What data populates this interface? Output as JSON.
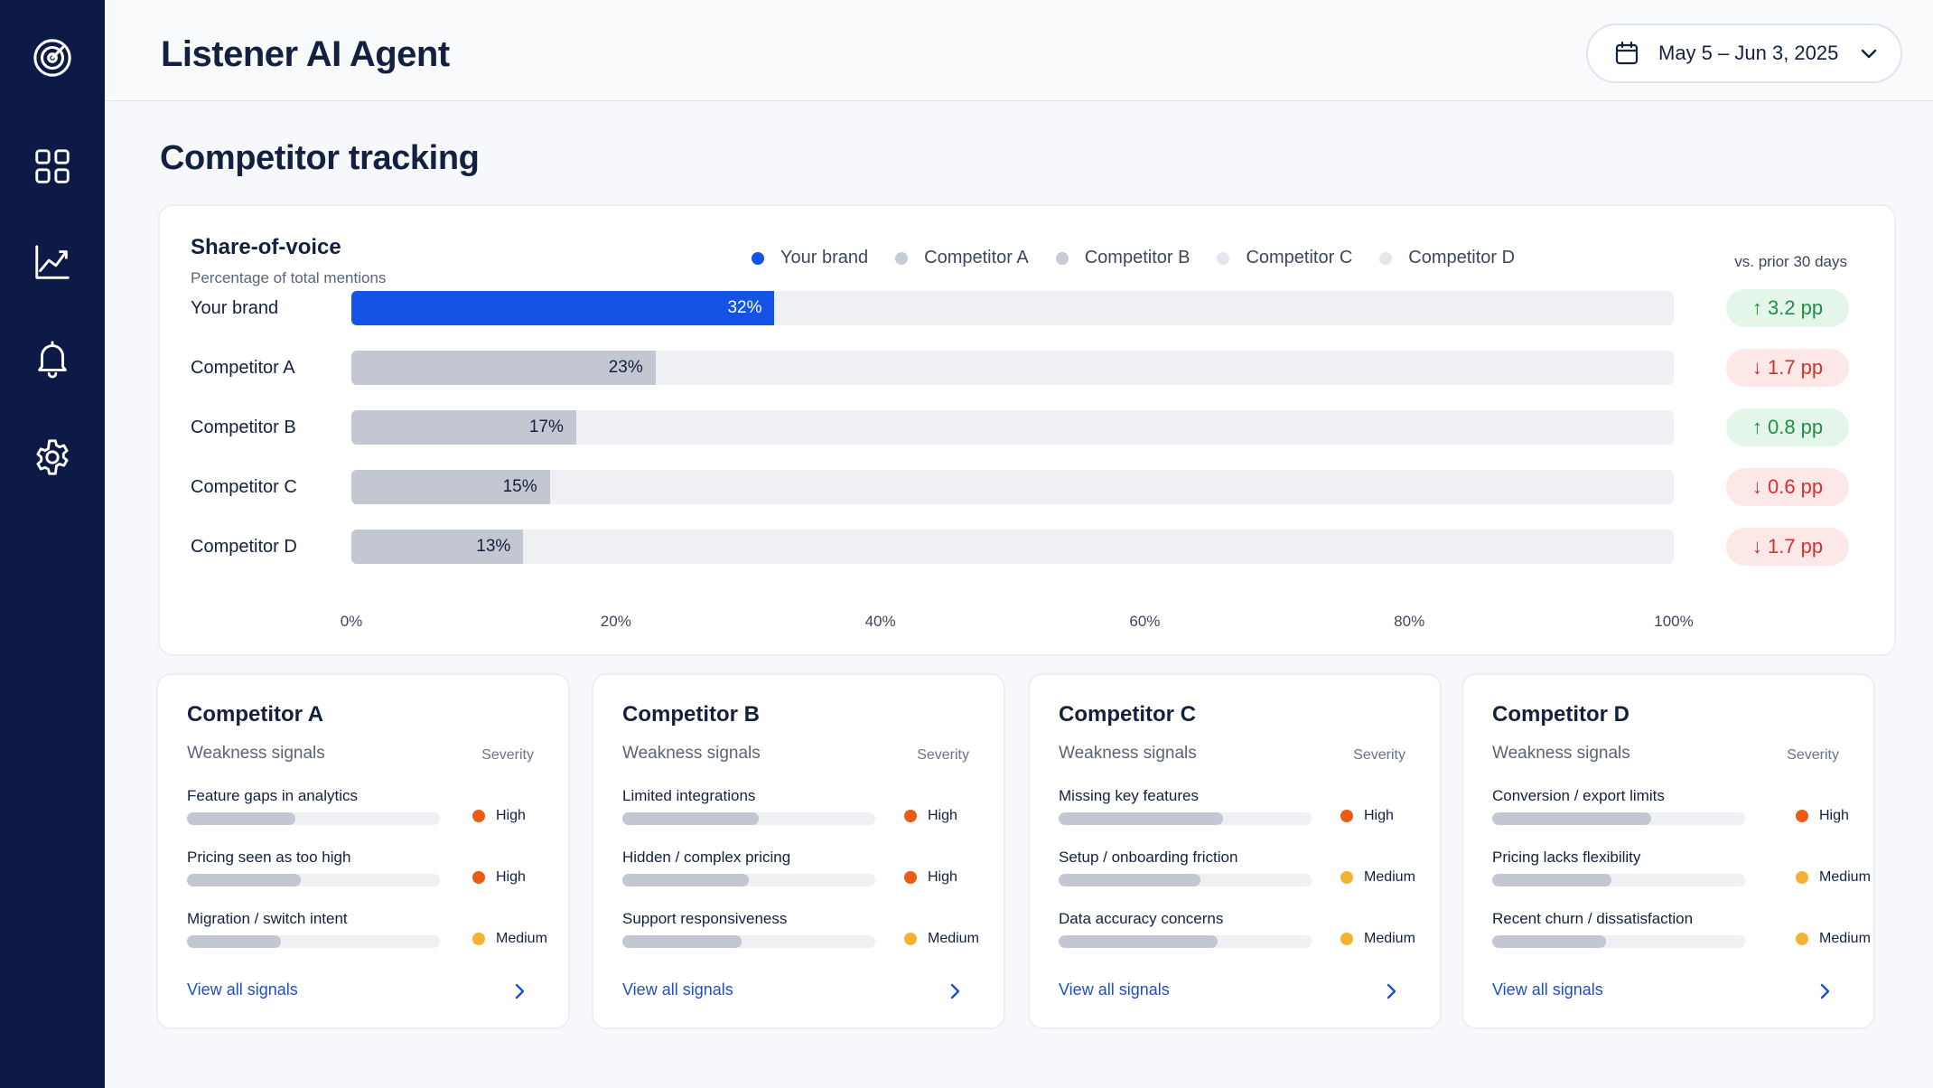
{
  "app": {
    "title": "Listener AI Agent"
  },
  "date_range": {
    "label": "May 5 – Jun 3, 2025"
  },
  "page": {
    "title": "Competitor tracking"
  },
  "sidebar": {
    "icons": [
      "target-icon",
      "grid-icon",
      "chart-icon",
      "bell-icon",
      "gear-icon"
    ]
  },
  "colors": {
    "sidebar_bg": "#0c1a45",
    "brand": "#1553e6",
    "competitor_bar": "#c3c7d1",
    "up_bg": "#e4f6ea",
    "up_text": "#1f8f45",
    "down_bg": "#fde8e8",
    "down_text": "#d62f2f",
    "high": "#ec5b13",
    "medium": "#f5b334",
    "link": "#1f4fd1"
  },
  "share_of_voice": {
    "title": "Share-of-voice",
    "subtitle": "Percentage of total mentions",
    "vs_label": "vs. prior 30 days",
    "legend": [
      {
        "label": "Your brand",
        "color": "#1553e6"
      },
      {
        "label": "Competitor A",
        "color": "#c7cbd4"
      },
      {
        "label": "Competitor B",
        "color": "#c7cbd4"
      },
      {
        "label": "Competitor C",
        "color": "#e3e6ec"
      },
      {
        "label": "Competitor D",
        "color": "#e3e6ec"
      }
    ]
  },
  "chart_data": {
    "type": "bar",
    "orientation": "horizontal",
    "title": "Share-of-voice",
    "subtitle": "Percentage of total mentions",
    "categories": [
      "Your brand",
      "Competitor A",
      "Competitor B",
      "Competitor C",
      "Competitor D"
    ],
    "values": [
      32,
      23,
      17,
      15,
      13
    ],
    "value_labels": [
      "32%",
      "23%",
      "17%",
      "15%",
      "13%"
    ],
    "deltas": [
      {
        "text": "↑ 3.2 pp",
        "direction": "up"
      },
      {
        "text": "↓ 1.7 pp",
        "direction": "down"
      },
      {
        "text": "↑ 0.8 pp",
        "direction": "up"
      },
      {
        "text": "↓ 0.6 pp",
        "direction": "down"
      },
      {
        "text": "↓ 1.7 pp",
        "direction": "down"
      }
    ],
    "xlim": [
      0,
      100
    ],
    "x_ticks": [
      "0%",
      "20%",
      "40%",
      "60%",
      "80%",
      "100%"
    ],
    "grid": false,
    "legend_position": "top"
  },
  "competitors": [
    {
      "name": "Competitor A",
      "weakness_label": "Weakness signals",
      "severity_label": "Severity",
      "signals": [
        {
          "label": "Feature gaps in analytics",
          "strength": 0.43,
          "severity": "High"
        },
        {
          "label": "Pricing seen as too high",
          "strength": 0.45,
          "severity": "High"
        },
        {
          "label": "Migration / switch intent",
          "strength": 0.37,
          "severity": "Medium"
        }
      ],
      "link": "View all signals"
    },
    {
      "name": "Competitor B",
      "weakness_label": "Weakness signals",
      "severity_label": "Severity",
      "signals": [
        {
          "label": "Limited integrations",
          "strength": 0.54,
          "severity": "High"
        },
        {
          "label": "Hidden / complex pricing",
          "strength": 0.5,
          "severity": "High"
        },
        {
          "label": "Support responsiveness",
          "strength": 0.47,
          "severity": "Medium"
        }
      ],
      "link": "View all signals"
    },
    {
      "name": "Competitor C",
      "weakness_label": "Weakness signals",
      "severity_label": "Severity",
      "signals": [
        {
          "label": "Missing key features",
          "strength": 0.65,
          "severity": "High"
        },
        {
          "label": "Setup / onboarding friction",
          "strength": 0.56,
          "severity": "Medium"
        },
        {
          "label": "Data accuracy concerns",
          "strength": 0.63,
          "severity": "Medium"
        }
      ],
      "link": "View all signals"
    },
    {
      "name": "Competitor D",
      "weakness_label": "Weakness signals",
      "severity_label": "Severity",
      "signals": [
        {
          "label": "Conversion / export limits",
          "strength": 0.63,
          "severity": "High"
        },
        {
          "label": "Pricing lacks flexibility",
          "strength": 0.47,
          "severity": "Medium"
        },
        {
          "label": "Recent churn / dissatisfaction",
          "strength": 0.45,
          "severity": "Medium"
        }
      ],
      "link": "View all signals"
    }
  ]
}
